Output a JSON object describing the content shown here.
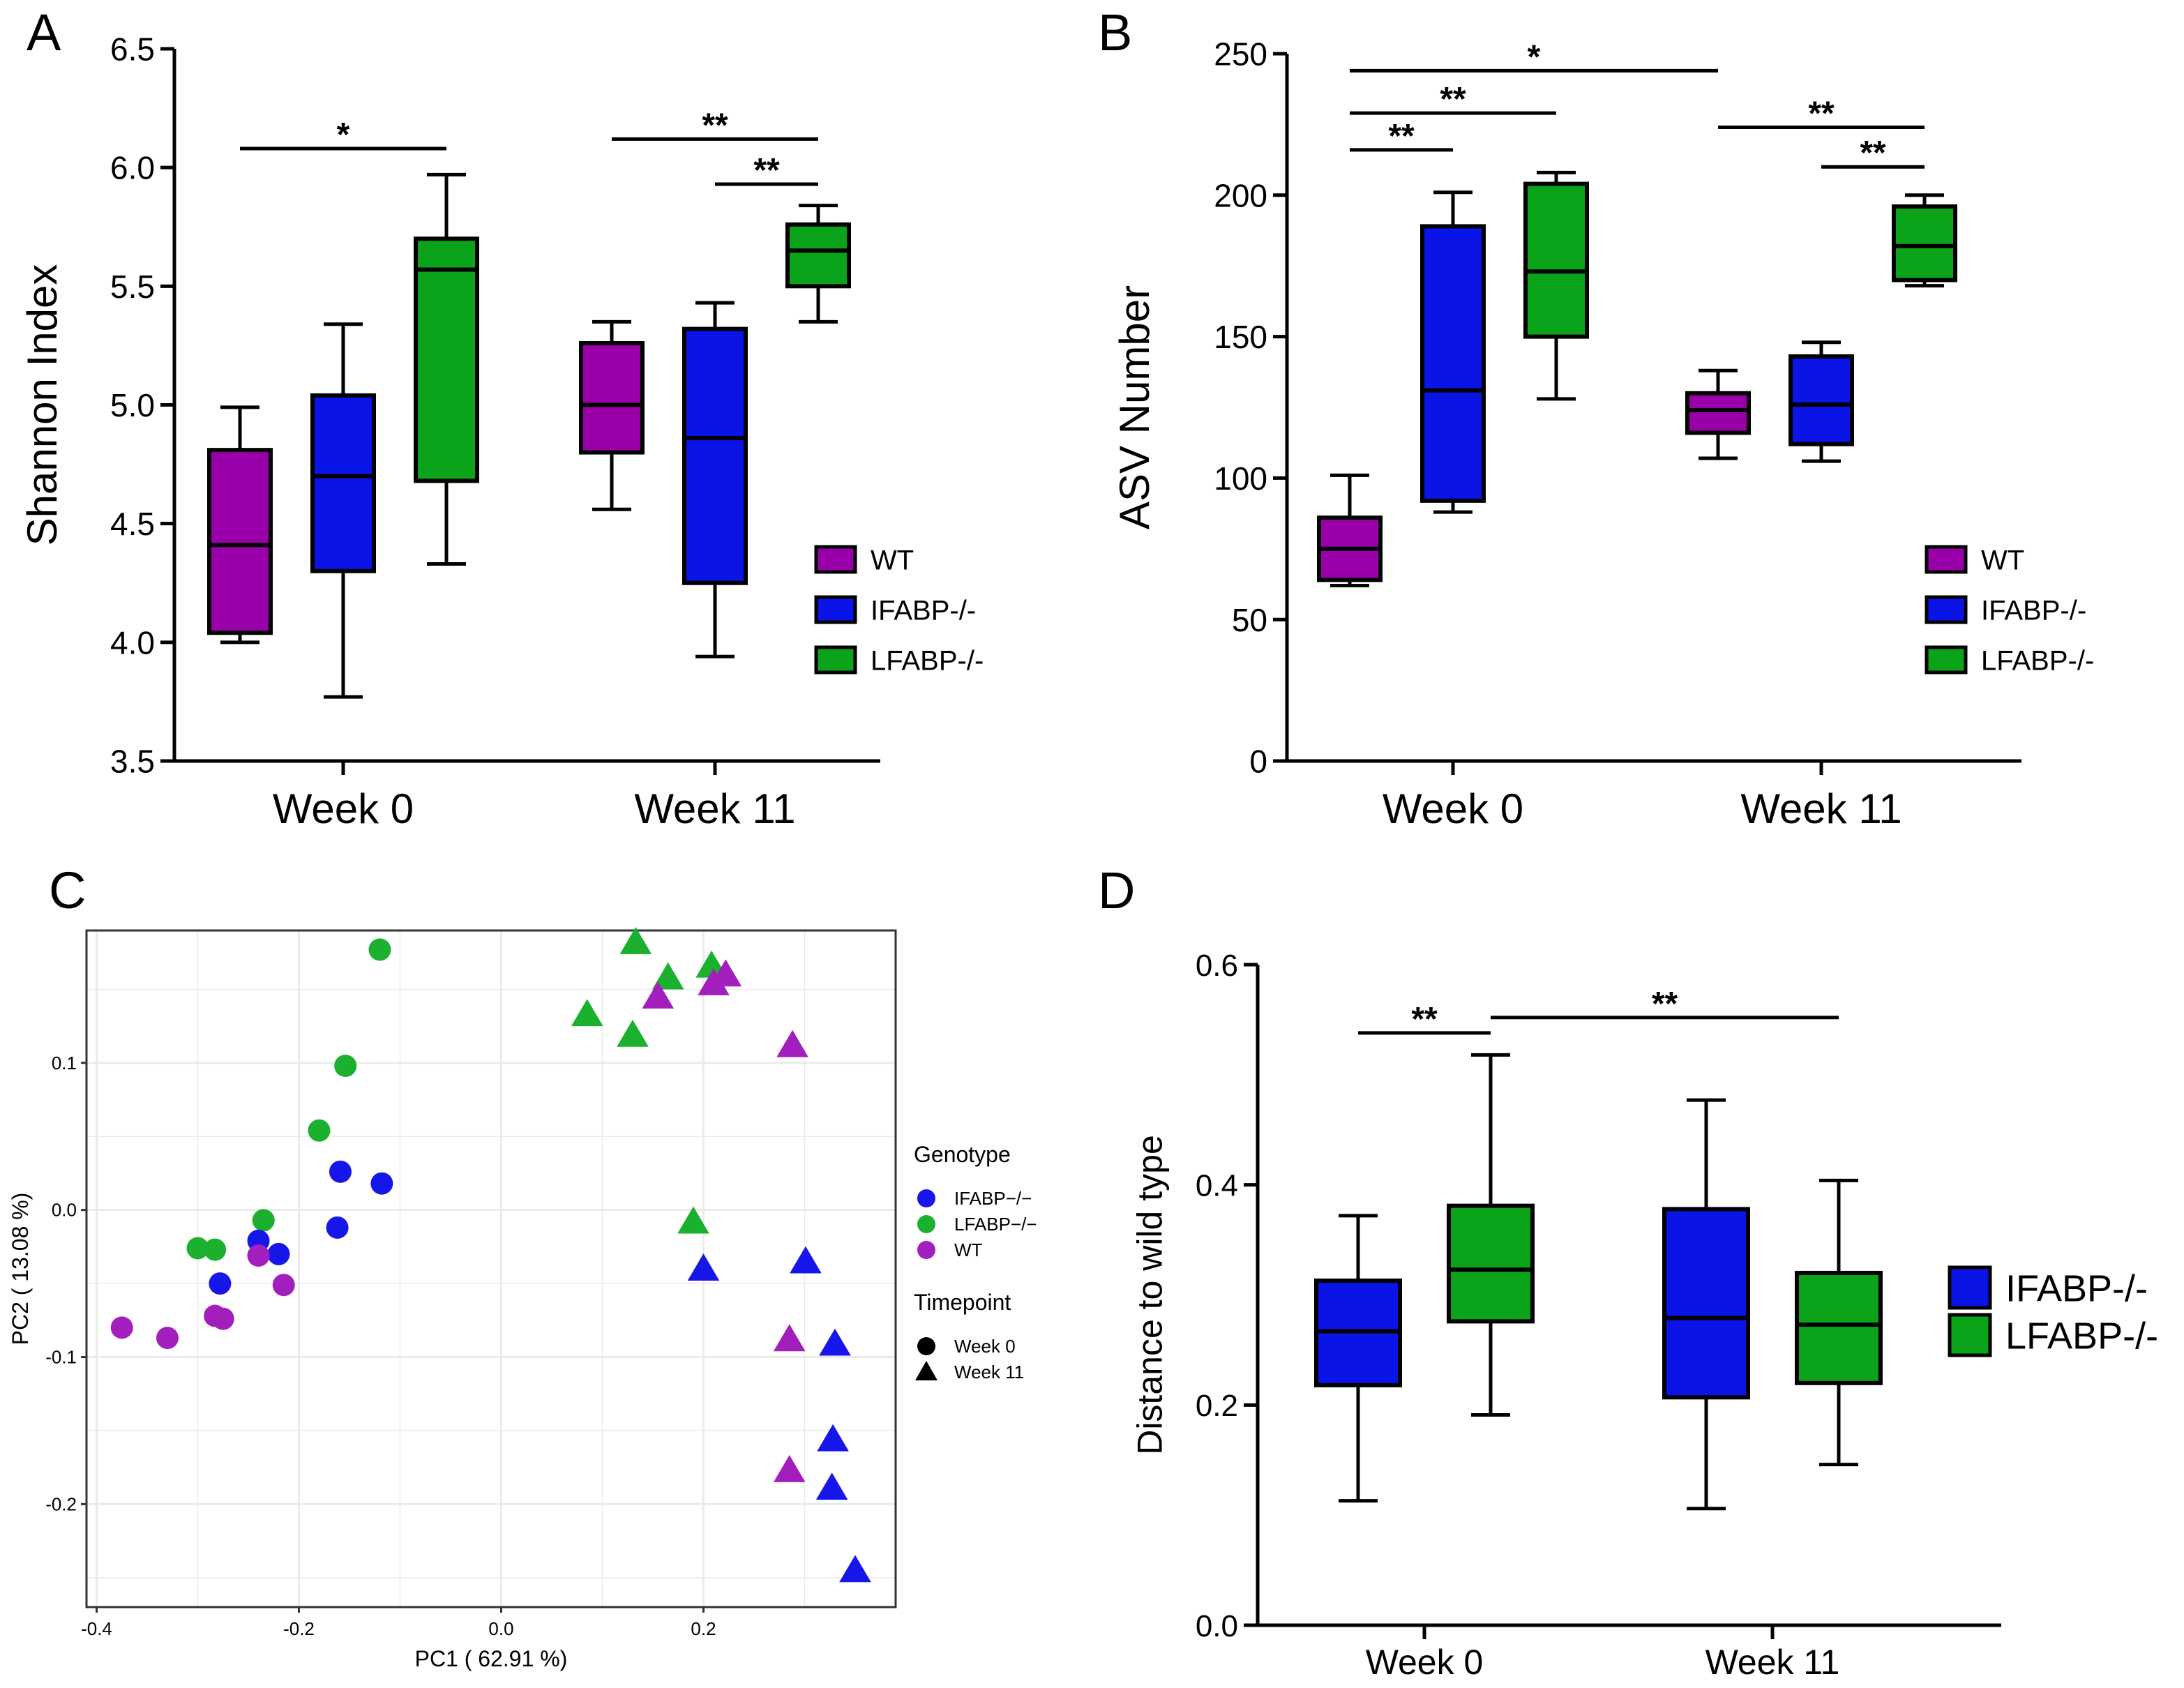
{
  "colors": {
    "WT": "#9900aa",
    "IFABP-/-": "#0a14e6",
    "LFABP-/-": "#0aa319",
    "pca_wt": "#a21fbe",
    "pca_ifabp": "#1616ea",
    "pca_lfabp": "#1bb02e",
    "panel_border": "#333333",
    "grid": "#ebebeb"
  },
  "chart_data": [
    {
      "id": "A",
      "panel_letter": "A",
      "type": "box",
      "ylabel": "Shannon Index",
      "xlabel": "",
      "ylim": [
        3.5,
        6.5
      ],
      "yticks": [
        3.5,
        4.0,
        4.5,
        5.0,
        5.5,
        6.0,
        6.5
      ],
      "ytick_labels": [
        "3.5",
        "4.0",
        "4.5",
        "5.0",
        "5.5",
        "6.0",
        "6.5"
      ],
      "categories": [
        "Week 0",
        "Week 11"
      ],
      "series_names": [
        "WT",
        "IFABP-/-",
        "LFABP-/-"
      ],
      "legend": [
        "WT",
        "IFABP-/-",
        "LFABP-/-"
      ],
      "boxes": [
        {
          "group": "Week 0",
          "series": "WT",
          "min": 4.0,
          "q1": 4.04,
          "median": 4.41,
          "q3": 4.81,
          "max": 4.99
        },
        {
          "group": "Week 0",
          "series": "IFABP-/-",
          "min": 3.77,
          "q1": 4.3,
          "median": 4.7,
          "q3": 5.04,
          "max": 5.34
        },
        {
          "group": "Week 0",
          "series": "LFABP-/-",
          "min": 4.33,
          "q1": 4.68,
          "median": 5.57,
          "q3": 5.7,
          "max": 5.97
        },
        {
          "group": "Week 11",
          "series": "WT",
          "min": 4.56,
          "q1": 4.8,
          "median": 5.0,
          "q3": 5.26,
          "max": 5.35
        },
        {
          "group": "Week 11",
          "series": "IFABP-/-",
          "min": 3.94,
          "q1": 4.25,
          "median": 4.86,
          "q3": 5.32,
          "max": 5.43
        },
        {
          "group": "Week 11",
          "series": "LFABP-/-",
          "min": 5.35,
          "q1": 5.5,
          "median": 5.65,
          "q3": 5.76,
          "max": 5.84
        }
      ],
      "annotations": [
        {
          "from": [
            "Week 0",
            "WT"
          ],
          "to": [
            "Week 0",
            "LFABP-/-"
          ],
          "y": 6.08,
          "text": "*"
        },
        {
          "from": [
            "Week 11",
            "WT"
          ],
          "to": [
            "Week 11",
            "LFABP-/-"
          ],
          "y": 6.12,
          "text": "**"
        },
        {
          "from": [
            "Week 11",
            "IFABP-/-"
          ],
          "to": [
            "Week 11",
            "LFABP-/-"
          ],
          "y": 5.93,
          "text": "**"
        }
      ]
    },
    {
      "id": "B",
      "panel_letter": "B",
      "type": "box",
      "ylabel": "ASV Number",
      "xlabel": "",
      "ylim": [
        0,
        250
      ],
      "yticks": [
        0,
        50,
        100,
        150,
        200,
        250
      ],
      "ytick_labels": [
        "0",
        "50",
        "100",
        "150",
        "200",
        "250"
      ],
      "categories": [
        "Week 0",
        "Week 11"
      ],
      "series_names": [
        "WT",
        "IFABP-/-",
        "LFABP-/-"
      ],
      "legend": [
        "WT",
        "IFABP-/-",
        "LFABP-/-"
      ],
      "boxes": [
        {
          "group": "Week 0",
          "series": "WT",
          "min": 62,
          "q1": 64,
          "median": 75,
          "q3": 86,
          "max": 101
        },
        {
          "group": "Week 0",
          "series": "IFABP-/-",
          "min": 88,
          "q1": 92,
          "median": 131,
          "q3": 189,
          "max": 201
        },
        {
          "group": "Week 0",
          "series": "LFABP-/-",
          "min": 128,
          "q1": 150,
          "median": 173,
          "q3": 204,
          "max": 208
        },
        {
          "group": "Week 11",
          "series": "WT",
          "min": 107,
          "q1": 116,
          "median": 124,
          "q3": 130,
          "max": 138
        },
        {
          "group": "Week 11",
          "series": "IFABP-/-",
          "min": 106,
          "q1": 112,
          "median": 126,
          "q3": 143,
          "max": 148
        },
        {
          "group": "Week 11",
          "series": "LFABP-/-",
          "min": 168,
          "q1": 170,
          "median": 182,
          "q3": 196,
          "max": 200
        }
      ],
      "annotations": [
        {
          "from": [
            "Week 0",
            "WT"
          ],
          "to": [
            "Week 0",
            "IFABP-/-"
          ],
          "y": 216,
          "text": "**"
        },
        {
          "from": [
            "Week 0",
            "WT"
          ],
          "to": [
            "Week 0",
            "LFABP-/-"
          ],
          "y": 229,
          "text": "**"
        },
        {
          "from": [
            "Week 0",
            "WT"
          ],
          "to": [
            "Week 11",
            "WT"
          ],
          "y": 244,
          "text": "*"
        },
        {
          "from": [
            "Week 11",
            "WT"
          ],
          "to": [
            "Week 11",
            "LFABP-/-"
          ],
          "y": 224,
          "text": "**"
        },
        {
          "from": [
            "Week 11",
            "IFABP-/-"
          ],
          "to": [
            "Week 11",
            "LFABP-/-"
          ],
          "y": 210,
          "text": "**"
        }
      ]
    },
    {
      "id": "C",
      "panel_letter": "C",
      "type": "scatter",
      "xlabel": "PC1 ( 62.91 %)",
      "ylabel": "PC2 ( 13.08 %)",
      "xlim": [
        -0.41,
        0.39
      ],
      "ylim": [
        -0.27,
        0.19
      ],
      "xticks": [
        -0.4,
        -0.2,
        0.0,
        0.2
      ],
      "xtick_labels": [
        "-0.4",
        "-0.2",
        "0.0",
        "0.2"
      ],
      "yticks": [
        -0.2,
        -0.1,
        0.0,
        0.1
      ],
      "ytick_labels": [
        "-0.2",
        "-0.1",
        "0.0",
        "0.1"
      ],
      "legend": {
        "genotype_title": "Genotype",
        "genotype_items": [
          "IFABP−/−",
          "LFABP−/−",
          "WT"
        ],
        "timepoint_title": "Timepoint",
        "timepoint_items": [
          "Week 0",
          "Week 11"
        ]
      },
      "points": [
        {
          "x": -0.12,
          "y": 0.177,
          "genotype": "LFABP",
          "timepoint": "Week 0"
        },
        {
          "x": -0.154,
          "y": 0.098,
          "genotype": "LFABP",
          "timepoint": "Week 0"
        },
        {
          "x": -0.18,
          "y": 0.054,
          "genotype": "LFABP",
          "timepoint": "Week 0"
        },
        {
          "x": -0.235,
          "y": -0.007,
          "genotype": "LFABP",
          "timepoint": "Week 0"
        },
        {
          "x": -0.3,
          "y": -0.026,
          "genotype": "LFABP",
          "timepoint": "Week 0"
        },
        {
          "x": -0.283,
          "y": -0.027,
          "genotype": "LFABP",
          "timepoint": "Week 0"
        },
        {
          "x": -0.159,
          "y": 0.026,
          "genotype": "IFABP",
          "timepoint": "Week 0"
        },
        {
          "x": -0.118,
          "y": 0.018,
          "genotype": "IFABP",
          "timepoint": "Week 0"
        },
        {
          "x": -0.162,
          "y": -0.012,
          "genotype": "IFABP",
          "timepoint": "Week 0"
        },
        {
          "x": -0.24,
          "y": -0.021,
          "genotype": "IFABP",
          "timepoint": "Week 0"
        },
        {
          "x": -0.22,
          "y": -0.03,
          "genotype": "IFABP",
          "timepoint": "Week 0"
        },
        {
          "x": -0.278,
          "y": -0.05,
          "genotype": "IFABP",
          "timepoint": "Week 0"
        },
        {
          "x": -0.24,
          "y": -0.031,
          "genotype": "WT",
          "timepoint": "Week 0"
        },
        {
          "x": -0.215,
          "y": -0.051,
          "genotype": "WT",
          "timepoint": "Week 0"
        },
        {
          "x": -0.283,
          "y": -0.072,
          "genotype": "WT",
          "timepoint": "Week 0"
        },
        {
          "x": -0.275,
          "y": -0.074,
          "genotype": "WT",
          "timepoint": "Week 0"
        },
        {
          "x": -0.375,
          "y": -0.08,
          "genotype": "WT",
          "timepoint": "Week 0"
        },
        {
          "x": -0.33,
          "y": -0.087,
          "genotype": "WT",
          "timepoint": "Week 0"
        },
        {
          "x": 0.133,
          "y": 0.181,
          "genotype": "LFABP",
          "timepoint": "Week 11"
        },
        {
          "x": 0.165,
          "y": 0.157,
          "genotype": "LFABP",
          "timepoint": "Week 11"
        },
        {
          "x": 0.208,
          "y": 0.165,
          "genotype": "LFABP",
          "timepoint": "Week 11"
        },
        {
          "x": 0.085,
          "y": 0.132,
          "genotype": "LFABP",
          "timepoint": "Week 11"
        },
        {
          "x": 0.13,
          "y": 0.118,
          "genotype": "LFABP",
          "timepoint": "Week 11"
        },
        {
          "x": 0.19,
          "y": -0.009,
          "genotype": "LFABP",
          "timepoint": "Week 11"
        },
        {
          "x": 0.222,
          "y": 0.159,
          "genotype": "WT",
          "timepoint": "Week 11"
        },
        {
          "x": 0.21,
          "y": 0.153,
          "genotype": "WT",
          "timepoint": "Week 11"
        },
        {
          "x": 0.155,
          "y": 0.144,
          "genotype": "WT",
          "timepoint": "Week 11"
        },
        {
          "x": 0.288,
          "y": 0.111,
          "genotype": "WT",
          "timepoint": "Week 11"
        },
        {
          "x": 0.285,
          "y": -0.089,
          "genotype": "WT",
          "timepoint": "Week 11"
        },
        {
          "x": 0.285,
          "y": -0.178,
          "genotype": "WT",
          "timepoint": "Week 11"
        },
        {
          "x": 0.2,
          "y": -0.041,
          "genotype": "IFABP",
          "timepoint": "Week 11"
        },
        {
          "x": 0.301,
          "y": -0.036,
          "genotype": "IFABP",
          "timepoint": "Week 11"
        },
        {
          "x": 0.33,
          "y": -0.092,
          "genotype": "IFABP",
          "timepoint": "Week 11"
        },
        {
          "x": 0.328,
          "y": -0.157,
          "genotype": "IFABP",
          "timepoint": "Week 11"
        },
        {
          "x": 0.327,
          "y": -0.19,
          "genotype": "IFABP",
          "timepoint": "Week 11"
        },
        {
          "x": 0.35,
          "y": -0.246,
          "genotype": "IFABP",
          "timepoint": "Week 11"
        }
      ]
    },
    {
      "id": "D",
      "panel_letter": "D",
      "type": "box",
      "ylabel": "Distance to wild type",
      "xlabel": "",
      "ylim": [
        0.0,
        0.6
      ],
      "yticks": [
        0.0,
        0.2,
        0.4,
        0.6
      ],
      "ytick_labels": [
        "0.0",
        "0.2",
        "0.4",
        "0.6"
      ],
      "categories": [
        "Week 0",
        "Week 11"
      ],
      "series_names": [
        "IFABP-/-",
        "LFABP-/-"
      ],
      "legend": [
        "IFABP-/-",
        "LFABP-/-"
      ],
      "boxes": [
        {
          "group": "Week 0",
          "series": "IFABP-/-",
          "min": 0.113,
          "q1": 0.218,
          "median": 0.267,
          "q3": 0.313,
          "max": 0.372
        },
        {
          "group": "Week 0",
          "series": "LFABP-/-",
          "min": 0.191,
          "q1": 0.276,
          "median": 0.323,
          "q3": 0.381,
          "max": 0.518
        },
        {
          "group": "Week 11",
          "series": "IFABP-/-",
          "min": 0.106,
          "q1": 0.207,
          "median": 0.279,
          "q3": 0.378,
          "max": 0.477
        },
        {
          "group": "Week 11",
          "series": "LFABP-/-",
          "min": 0.146,
          "q1": 0.22,
          "median": 0.273,
          "q3": 0.32,
          "max": 0.404
        }
      ],
      "annotations": [
        {
          "from": [
            "Week 0",
            "IFABP-/-"
          ],
          "to": [
            "Week 0",
            "LFABP-/-"
          ],
          "y": 0.538,
          "text": "**",
          "xfrom_frac": -0.5,
          "xto_frac": 0.0
        },
        {
          "from": [
            "Week 0",
            "LFABP-/-"
          ],
          "to": [
            "Week 11",
            "LFABP-/-"
          ],
          "y": 0.552,
          "text": "**",
          "xfrom_frac": 0.0,
          "xto_frac": 0.0
        }
      ]
    }
  ]
}
